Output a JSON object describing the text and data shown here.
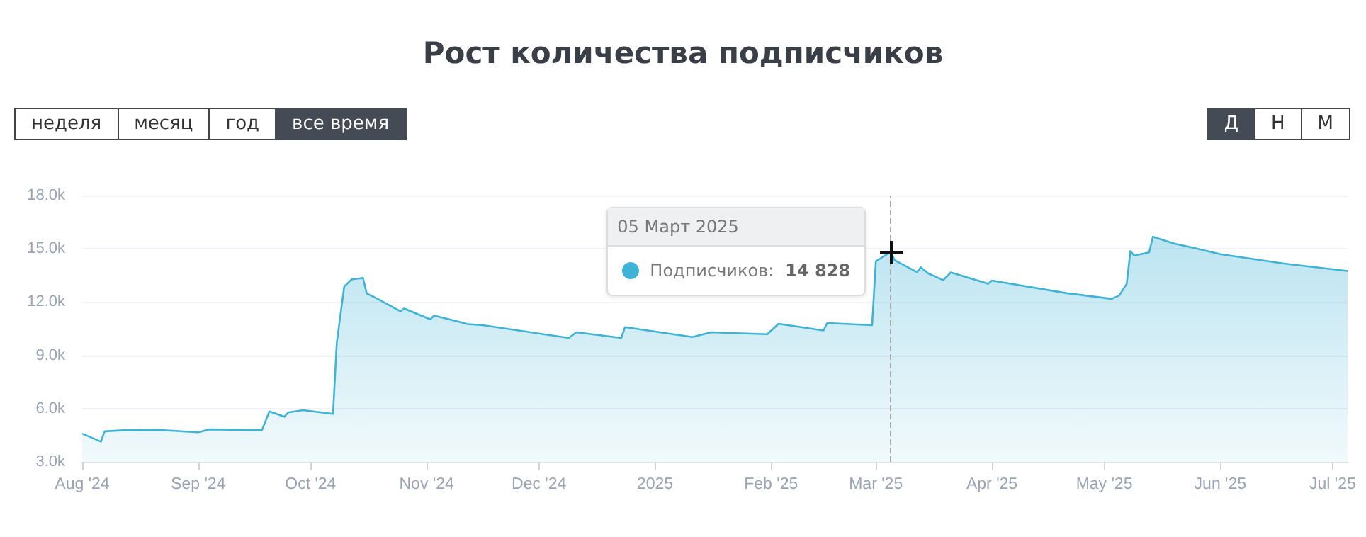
{
  "chart_data": {
    "type": "area",
    "title": "Рост количества подписчиков",
    "annotations": [
      "неделя",
      "месяц",
      "год",
      "все время",
      "Д",
      "Н",
      "М",
      "05 Март 2025",
      {
        "text": "Подписчиков: 14 828",
        "x": "2025-03-05",
        "y": 14828
      }
    ],
    "x": [
      "2024-08-01",
      "2024-08-06",
      "2024-08-07",
      "2024-08-12",
      "2024-08-21",
      "2024-09-01",
      "2024-09-04",
      "2024-09-18",
      "2024-09-20",
      "2024-09-24",
      "2024-09-25",
      "2024-09-29",
      "2024-10-07",
      "2024-10-08",
      "2024-10-09",
      "2024-10-10",
      "2024-10-12",
      "2024-10-14",
      "2024-10-15",
      "2024-10-16",
      "2024-10-19",
      "2024-10-25",
      "2024-10-26",
      "2024-11-02",
      "2024-11-03",
      "2024-11-08",
      "2024-11-12",
      "2024-11-16",
      "2024-12-09",
      "2024-12-11",
      "2024-12-23",
      "2024-12-24",
      "2025-01-11",
      "2025-01-16",
      "2025-01-31",
      "2025-02-03",
      "2025-02-15",
      "2025-02-16",
      "2025-02-28",
      "2025-03-01",
      "2025-03-05",
      "2025-03-06",
      "2025-03-12",
      "2025-03-13",
      "2025-03-15",
      "2025-03-19",
      "2025-03-21",
      "2025-03-31",
      "2025-04-01",
      "2025-04-21",
      "2025-05-03",
      "2025-05-05",
      "2025-05-07",
      "2025-05-08",
      "2025-05-09",
      "2025-05-13",
      "2025-05-14",
      "2025-05-20",
      "2025-05-24",
      "2025-06-01",
      "2025-06-18",
      "2025-07-05"
    ],
    "series": [
      {
        "color": "#3fb3d6",
        "values": [
          4590,
          4140,
          4720,
          4780,
          4800,
          4670,
          4830,
          4780,
          5840,
          5540,
          5780,
          5910,
          5700,
          9700,
          11300,
          12880,
          13280,
          13330,
          13360,
          12490,
          12170,
          11480,
          11640,
          11030,
          11240,
          10980,
          10760,
          10700,
          9980,
          10300,
          9980,
          10590,
          10030,
          10300,
          10190,
          10780,
          10400,
          10820,
          10700,
          14300,
          14828,
          14360,
          13690,
          13960,
          13610,
          13240,
          13670,
          13030,
          13210,
          12500,
          12180,
          12370,
          13030,
          14880,
          14620,
          14800,
          15680,
          15280,
          15100,
          14700,
          14170,
          13750
        ]
      }
    ],
    "xlim": [
      "2024-08-01",
      "2025-07-05"
    ],
    "xticks": [
      {
        "value": "2024-08-01",
        "label": "Aug '24"
      },
      {
        "value": "2024-09-01",
        "label": "Sep '24"
      },
      {
        "value": "2024-10-01",
        "label": "Oct '24"
      },
      {
        "value": "2024-11-01",
        "label": "Nov '24"
      },
      {
        "value": "2024-12-01",
        "label": "Dec '24"
      },
      {
        "value": "2025-01-01",
        "label": "2025"
      },
      {
        "value": "2025-02-01",
        "label": "Feb '25"
      },
      {
        "value": "2025-03-01",
        "label": "Mar '25"
      },
      {
        "value": "2025-04-01",
        "label": "Apr '25"
      },
      {
        "value": "2025-05-01",
        "label": "May '25"
      },
      {
        "value": "2025-06-01",
        "label": "Jun '25"
      },
      {
        "value": "2025-07-01",
        "label": "Jul '25"
      }
    ],
    "ylim": [
      3000,
      18000
    ],
    "yticks": [
      {
        "value": 3000,
        "label": "3.0k"
      },
      {
        "value": 6000,
        "label": "6.0k"
      },
      {
        "value": 9000,
        "label": "9.0k"
      },
      {
        "value": 12000,
        "label": "12.0k"
      },
      {
        "value": 15000,
        "label": "15.0k"
      },
      {
        "value": 18000,
        "label": "18.0k"
      }
    ],
    "ref_lines": [
      {
        "axis": "x",
        "value": "2025-03-05",
        "color": "#aaaaaa",
        "line_style": "dashed"
      }
    ],
    "grid": "y",
    "marker": "none",
    "line_style": "solid"
  }
}
